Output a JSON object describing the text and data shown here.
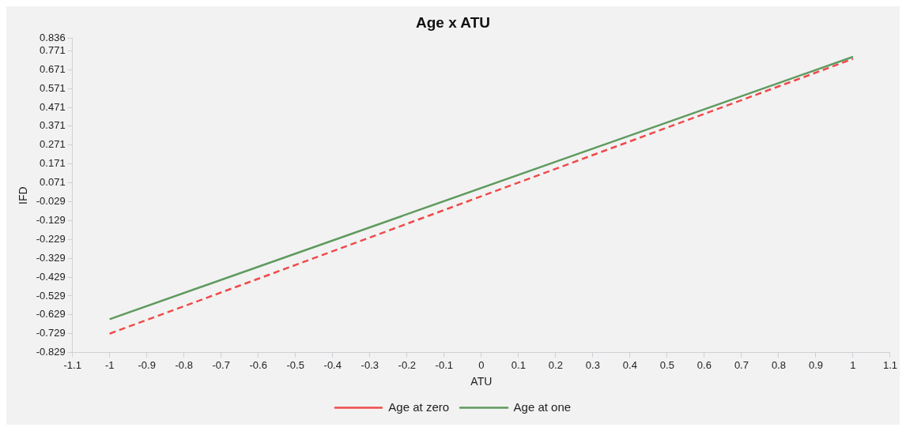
{
  "chart_data": {
    "type": "line",
    "title": "Age x ATU",
    "xlabel": "ATU",
    "ylabel": "IFD",
    "x": [
      -1,
      1
    ],
    "series": [
      {
        "name": "Age at zero",
        "color": "#f04a4a",
        "values": [
          -0.729,
          0.728
        ],
        "line_style": "dashed"
      },
      {
        "name": "Age at one",
        "color": "#5e9a5e",
        "values": [
          -0.652,
          0.739
        ],
        "line_style": "solid"
      }
    ],
    "xlim": [
      -1.1,
      1.1
    ],
    "xticks": [
      -1.1,
      -1,
      -0.9,
      -0.8,
      -0.7,
      -0.6,
      -0.5,
      -0.4,
      -0.3,
      -0.2,
      -0.1,
      0,
      0.1,
      0.2,
      0.3,
      0.4,
      0.5,
      0.6,
      0.7,
      0.8,
      0.9,
      1,
      1.1
    ],
    "ylim": [
      -0.829,
      0.836
    ],
    "yticks": [
      -0.829,
      -0.729,
      -0.629,
      -0.529,
      -0.429,
      -0.329,
      -0.229,
      -0.129,
      -0.029,
      0.071,
      0.171,
      0.271,
      0.371,
      0.471,
      0.571,
      0.671,
      0.771,
      0.836
    ],
    "grid": false,
    "legend": "bottom",
    "marker": "none"
  }
}
